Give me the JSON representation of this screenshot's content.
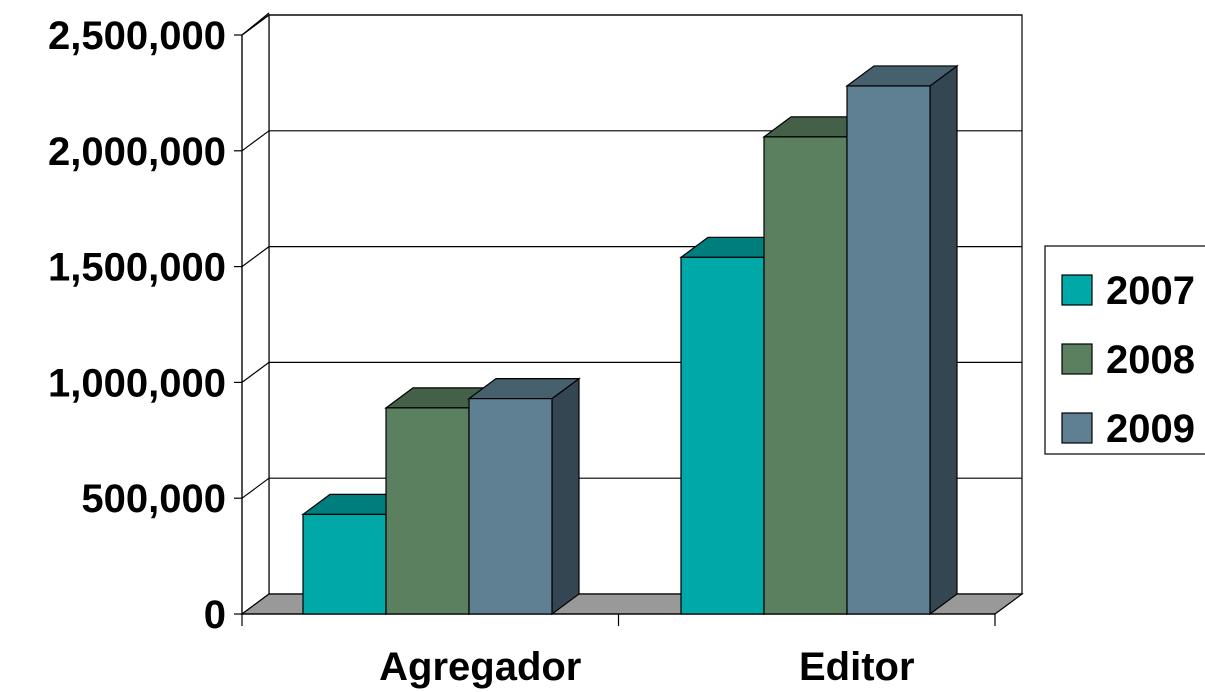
{
  "chart_data": {
    "type": "bar",
    "style": "3d-clustered-column",
    "categories": [
      "Agregador",
      "Editor"
    ],
    "series": [
      {
        "name": "2007",
        "values": [
          430000,
          1540000
        ],
        "color": "#00A8A8"
      },
      {
        "name": "2008",
        "values": [
          890000,
          2060000
        ],
        "color": "#5A8060"
      },
      {
        "name": "2009",
        "values": [
          930000,
          2280000
        ],
        "color": "#5F8093"
      }
    ],
    "y_ticks": [
      "0",
      "500,000",
      "1,000,000",
      "1,500,000",
      "2,000,000",
      "2,500,000"
    ],
    "ylim": [
      0,
      2500000
    ],
    "grid": true,
    "legend_position": "right",
    "floor_color": "#999999"
  }
}
